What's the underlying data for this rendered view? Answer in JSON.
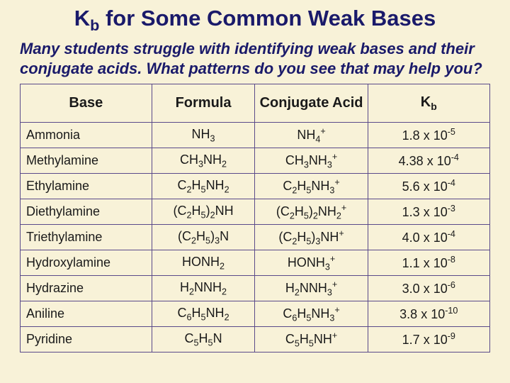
{
  "title_html": "K<sub>b</sub> for Some Common Weak Bases",
  "intro": "Many students struggle with identifying weak bases and their conjugate acids. What patterns do you see that may help you?",
  "table": {
    "columns": [
      {
        "label_html": "Base",
        "align": "left"
      },
      {
        "label_html": "Formula",
        "align": "center"
      },
      {
        "label_html": "Conjugate Acid",
        "align": "center"
      },
      {
        "label_html": "K<sub>b</sub>",
        "align": "center"
      }
    ],
    "rows": [
      {
        "base": "Ammonia",
        "formula_html": "NH<sub>3</sub>",
        "conj_html": "NH<sub>4</sub><sup>+</sup>",
        "kb_html": "1.8 x 10<sup>-5</sup>"
      },
      {
        "base": "Methylamine",
        "formula_html": "CH<sub>3</sub>NH<sub>2</sub>",
        "conj_html": "CH<sub>3</sub>NH<sub>3</sub><sup>+</sup>",
        "kb_html": "4.38 x 10<sup>-4</sup>"
      },
      {
        "base": "Ethylamine",
        "formula_html": "C<sub>2</sub>H<sub>5</sub>NH<sub>2</sub>",
        "conj_html": "C<sub>2</sub>H<sub>5</sub>NH<sub>3</sub><sup>+</sup>",
        "kb_html": "5.6 x 10<sup>-4</sup>"
      },
      {
        "base": "Diethylamine",
        "formula_html": "(C<sub>2</sub>H<sub>5</sub>)<sub>2</sub>NH",
        "conj_html": "(C<sub>2</sub>H<sub>5</sub>)<sub>2</sub>NH<sub>2</sub><sup>+</sup>",
        "kb_html": "1.3 x 10<sup>-3</sup>"
      },
      {
        "base": "Triethylamine",
        "formula_html": "(C<sub>2</sub>H<sub>5</sub>)<sub>3</sub>N",
        "conj_html": "(C<sub>2</sub>H<sub>5</sub>)<sub>3</sub>NH<sup>+</sup>",
        "kb_html": "4.0 x 10<sup>-4</sup>"
      },
      {
        "base": "Hydroxylamine",
        "formula_html": "HONH<sub>2</sub>",
        "conj_html": "HONH<sub>3</sub><sup>+</sup>",
        "kb_html": "1.1 x 10<sup>-8</sup>"
      },
      {
        "base": "Hydrazine",
        "formula_html": "H<sub>2</sub>NNH<sub>2</sub>",
        "conj_html": "H<sub>2</sub>NNH<sub>3</sub><sup>+</sup>",
        "kb_html": "3.0 x 10<sup>-6</sup>"
      },
      {
        "base": "Aniline",
        "formula_html": "C<sub>6</sub>H<sub>5</sub>NH<sub>2</sub>",
        "conj_html": "C<sub>6</sub>H<sub>5</sub>NH<sub>3</sub><sup>+</sup>",
        "kb_html": "3.8 x 10<sup>-10</sup>"
      },
      {
        "base": "Pyridine",
        "formula_html": "C<sub>5</sub>H<sub>5</sub>N",
        "conj_html": "C<sub>5</sub>H<sub>5</sub>NH<sup>+</sup>",
        "kb_html": "1.7 x 10<sup>-9</sup>"
      }
    ]
  },
  "styling": {
    "background_color": "#f8f2d8",
    "title_color": "#1a1a6a",
    "intro_color": "#1a1a6a",
    "border_color": "#5a4a8a",
    "text_color": "#1a1a1a",
    "font_family": "Comic Sans MS",
    "title_fontsize": 31,
    "intro_fontsize": 22,
    "header_fontsize": 20,
    "cell_fontsize": 18,
    "col_widths_pct": [
      28,
      22,
      24,
      26
    ]
  }
}
